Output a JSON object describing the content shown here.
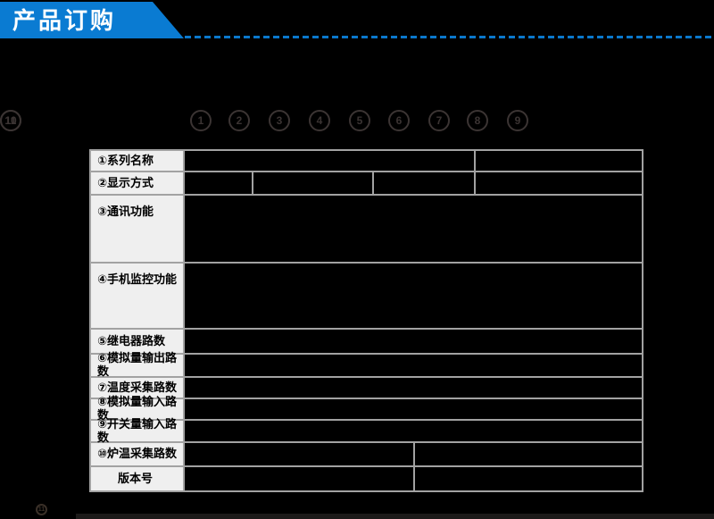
{
  "theme": {
    "banner": "#0a7bd2",
    "dash": "#0a78cc",
    "circle": "#3b3433",
    "tableBorder": "#a2a2a2",
    "labelBg": "#efefef",
    "cellBg": "#000000"
  },
  "header": {
    "title": "产品订购"
  },
  "callouts": {
    "items": [
      "1",
      "2",
      "3",
      "4",
      "5",
      "6",
      "7",
      "8",
      "9",
      "10",
      "11"
    ]
  },
  "order_table": {
    "rows": [
      {
        "label": "①系列名称"
      },
      {
        "label": "②显示方式"
      },
      {
        "label": "③通讯功能"
      },
      {
        "label": "④手机监控功能"
      },
      {
        "label": "⑤继电器路数"
      },
      {
        "label": "⑥模拟量输出路数"
      },
      {
        "label": "⑦温度采集路数"
      },
      {
        "label": "⑧模拟量输入路数"
      },
      {
        "label": "⑨开关量输入路数"
      },
      {
        "label": "⑩炉温采集路数"
      },
      {
        "label": "版本号"
      }
    ]
  },
  "footer": {
    "mini_callout": "11"
  }
}
